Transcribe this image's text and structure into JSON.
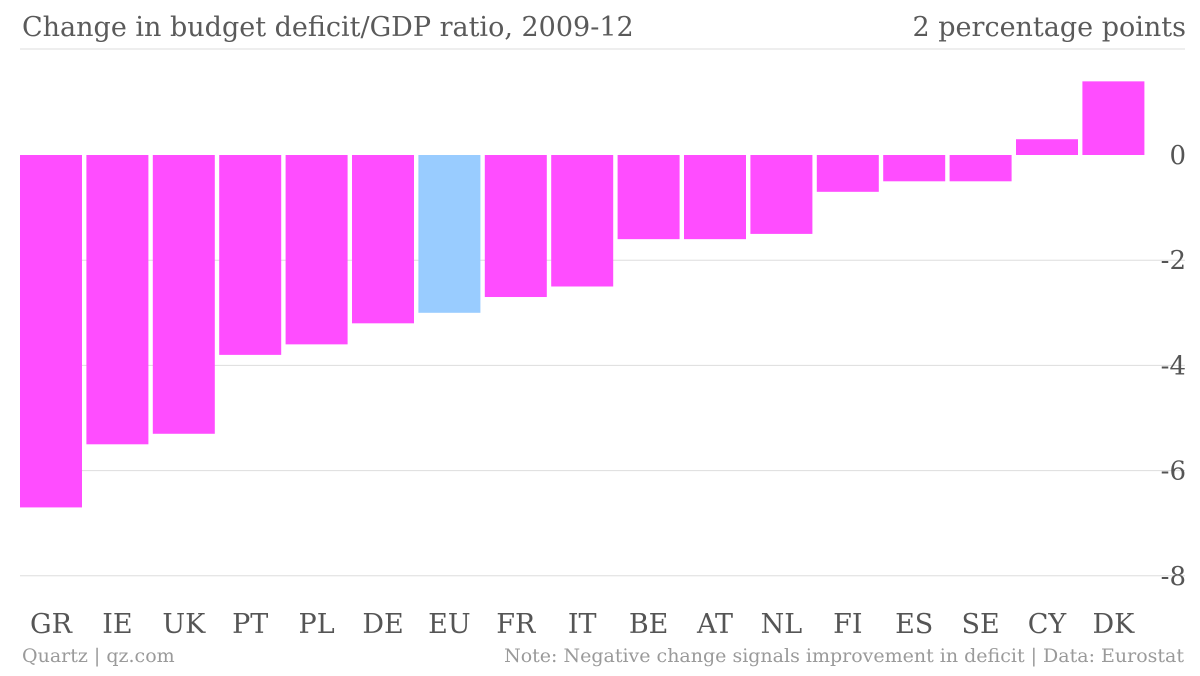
{
  "header": {
    "title": "Change in budget deficit/GDP ratio, 2009-12",
    "units": "2 percentage points"
  },
  "footer": {
    "credit": "Quartz | qz.com",
    "note": "Note: Negative change signals improvement in deficit | Data: Eurostat"
  },
  "colors": {
    "bar": "#ff4dff",
    "highlight": "#99ccff",
    "grid": "#dddddd",
    "text": "#555555"
  },
  "chart_data": {
    "type": "bar",
    "title": "Change in budget deficit/GDP ratio, 2009-12",
    "xlabel": "",
    "ylabel": "",
    "categories": [
      "GR",
      "IE",
      "UK",
      "PT",
      "PL",
      "DE",
      "EU",
      "FR",
      "IT",
      "BE",
      "AT",
      "NL",
      "FI",
      "ES",
      "SE",
      "CY",
      "DK"
    ],
    "values": [
      -6.7,
      -5.5,
      -5.3,
      -3.8,
      -3.6,
      -3.2,
      -3.0,
      -2.7,
      -2.5,
      -1.6,
      -1.6,
      -1.5,
      -0.7,
      -0.5,
      -0.5,
      0.3,
      1.4
    ],
    "highlight": [
      "EU"
    ],
    "yticks": [
      0,
      -2,
      -4,
      -6,
      -8
    ],
    "ytick_labels": [
      "0",
      "-2",
      "-4",
      "-6",
      "-8"
    ],
    "ylim": [
      -8,
      2
    ],
    "grid": true,
    "legend": "none"
  }
}
